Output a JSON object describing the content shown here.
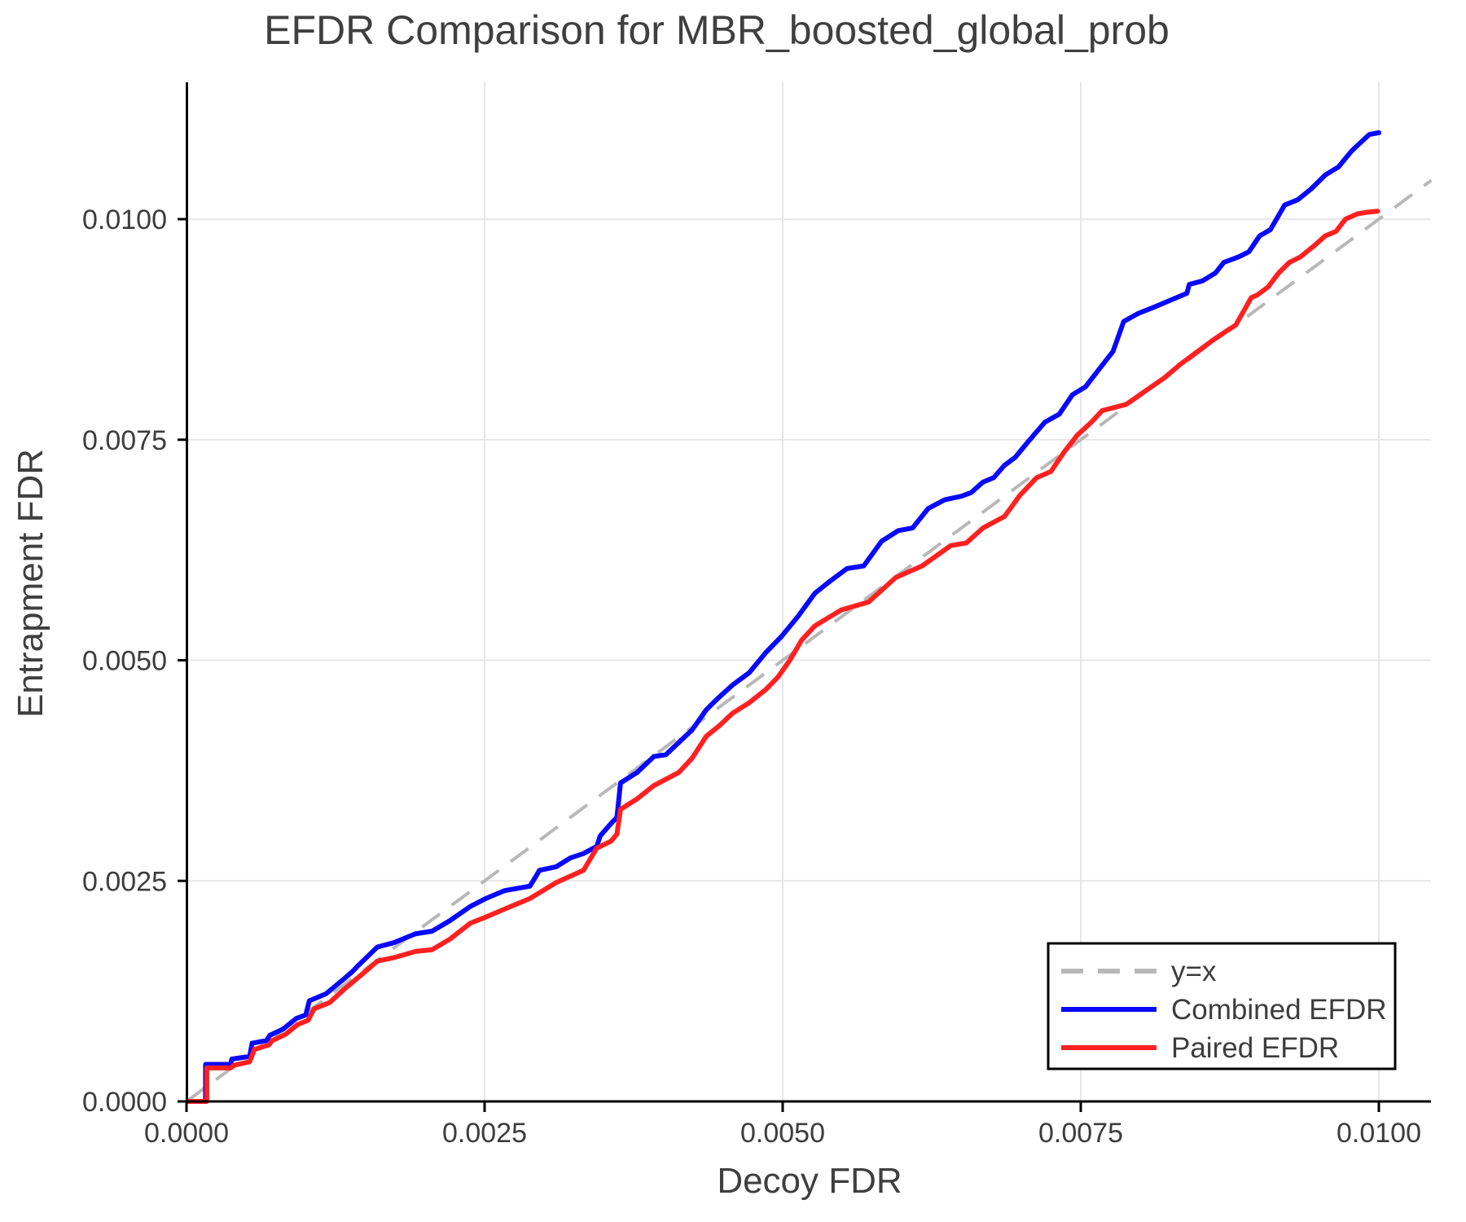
{
  "title": "EFDR Comparison for MBR_boosted_global_prob",
  "axes": {
    "xlabel": "Decoy FDR",
    "ylabel": "Entrapment FDR",
    "xtick_labels": [
      "0.0000",
      "0.0025",
      "0.0050",
      "0.0075",
      "0.0100"
    ],
    "ytick_labels": [
      "0.0000",
      "0.0025",
      "0.0050",
      "0.0075",
      "0.0100"
    ]
  },
  "legend": {
    "entries": [
      {
        "label": "y=x",
        "color": "#b8b8b8",
        "dash": "27 18"
      },
      {
        "label": "Combined EFDR",
        "color": "#0808ff",
        "dash": ""
      },
      {
        "label": "Paired EFDR",
        "color": "#ff2020",
        "dash": ""
      }
    ]
  },
  "colors": {
    "combined": "#0808ff",
    "paired": "#ff2020",
    "reference": "#b8b8b8",
    "grid": "#e4e4e4",
    "text": "#3d3d3d",
    "spine": "#000000"
  },
  "chart_data": {
    "type": "line",
    "title": "EFDR Comparison for MBR_boosted_global_prob",
    "xlabel": "Decoy FDR",
    "ylabel": "Entrapment FDR",
    "xlim": [
      0,
      0.01044
    ],
    "ylim": [
      0,
      0.01155
    ],
    "xticks": [
      0,
      0.0025,
      0.005,
      0.0075,
      0.01
    ],
    "yticks": [
      0,
      0.0025,
      0.005,
      0.0075,
      0.01
    ],
    "grid": true,
    "legend_position": "lower right",
    "reference_line": {
      "name": "y=x",
      "style": "dashed",
      "color": "#b8b8b8",
      "points": [
        [
          0,
          0
        ],
        [
          0.01044,
          0.01044
        ]
      ]
    },
    "series": [
      {
        "name": "Combined EFDR",
        "color": "#0808ff",
        "points": [
          [
            2e-05,
            0.0
          ],
          [
            0.00016,
            0.0
          ],
          [
            0.00016,
            0.00042
          ],
          [
            0.00037,
            0.00042
          ],
          [
            0.00038,
            0.00048
          ],
          [
            0.00053,
            0.00051
          ],
          [
            0.00055,
            0.00066
          ],
          [
            0.00067,
            0.00069
          ],
          [
            0.0007,
            0.00075
          ],
          [
            0.00081,
            0.00082
          ],
          [
            0.00092,
            0.00094
          ],
          [
            0.001,
            0.00098
          ],
          [
            0.00103,
            0.00114
          ],
          [
            0.00117,
            0.00122
          ],
          [
            0.00133,
            0.0014
          ],
          [
            0.00139,
            0.00147
          ],
          [
            0.00144,
            0.00154
          ],
          [
            0.0016,
            0.00175
          ],
          [
            0.00174,
            0.0018
          ],
          [
            0.00192,
            0.0019
          ],
          [
            0.00206,
            0.00193
          ],
          [
            0.00221,
            0.00205
          ],
          [
            0.00238,
            0.00221
          ],
          [
            0.00251,
            0.0023
          ],
          [
            0.00267,
            0.00239
          ],
          [
            0.00288,
            0.00244
          ],
          [
            0.00293,
            0.00255
          ],
          [
            0.00296,
            0.00262
          ],
          [
            0.0031,
            0.00266
          ],
          [
            0.00322,
            0.00276
          ],
          [
            0.00333,
            0.00281
          ],
          [
            0.00344,
            0.00289
          ],
          [
            0.00347,
            0.00301
          ],
          [
            0.00356,
            0.00315
          ],
          [
            0.00361,
            0.00322
          ],
          [
            0.00364,
            0.00361
          ],
          [
            0.00378,
            0.00373
          ],
          [
            0.00392,
            0.00391
          ],
          [
            0.00402,
            0.00393
          ],
          [
            0.00413,
            0.00407
          ],
          [
            0.00424,
            0.00421
          ],
          [
            0.00436,
            0.00444
          ],
          [
            0.00445,
            0.00456
          ],
          [
            0.00458,
            0.00472
          ],
          [
            0.00472,
            0.00486
          ],
          [
            0.00486,
            0.00509
          ],
          [
            0.00499,
            0.00527
          ],
          [
            0.00513,
            0.0055
          ],
          [
            0.00527,
            0.00576
          ],
          [
            0.0054,
            0.0059
          ],
          [
            0.00554,
            0.00604
          ],
          [
            0.00568,
            0.00607
          ],
          [
            0.00583,
            0.00635
          ],
          [
            0.00597,
            0.00647
          ],
          [
            0.00609,
            0.0065
          ],
          [
            0.00622,
            0.00672
          ],
          [
            0.00636,
            0.00682
          ],
          [
            0.0065,
            0.00686
          ],
          [
            0.00658,
            0.0069
          ],
          [
            0.00668,
            0.00702
          ],
          [
            0.00677,
            0.00707
          ],
          [
            0.00686,
            0.00721
          ],
          [
            0.00695,
            0.0073
          ],
          [
            0.00706,
            0.00748
          ],
          [
            0.0072,
            0.0077
          ],
          [
            0.00732,
            0.00779
          ],
          [
            0.00743,
            0.00801
          ],
          [
            0.00754,
            0.0081
          ],
          [
            0.00766,
            0.00831
          ],
          [
            0.00777,
            0.0085
          ],
          [
            0.00786,
            0.00884
          ],
          [
            0.00798,
            0.00893
          ],
          [
            0.00811,
            0.009
          ],
          [
            0.00825,
            0.00908
          ],
          [
            0.00839,
            0.00916
          ],
          [
            0.00841,
            0.00926
          ],
          [
            0.00852,
            0.0093
          ],
          [
            0.00863,
            0.00939
          ],
          [
            0.0087,
            0.00951
          ],
          [
            0.00882,
            0.00957
          ],
          [
            0.00891,
            0.00963
          ],
          [
            0.009,
            0.00981
          ],
          [
            0.00909,
            0.00988
          ],
          [
            0.00921,
            0.01016
          ],
          [
            0.00932,
            0.01022
          ],
          [
            0.00943,
            0.01034
          ],
          [
            0.00955,
            0.0105
          ],
          [
            0.00966,
            0.01059
          ],
          [
            0.00977,
            0.01077
          ],
          [
            0.00984,
            0.01086
          ],
          [
            0.00992,
            0.01096
          ],
          [
            0.01,
            0.01098
          ]
        ]
      },
      {
        "name": "Paired EFDR",
        "color": "#ff2020",
        "points": [
          [
            2e-05,
            0.0
          ],
          [
            0.00017,
            0.0
          ],
          [
            0.00017,
            0.00038
          ],
          [
            0.00037,
            0.00038
          ],
          [
            0.0004,
            0.00041
          ],
          [
            0.00053,
            0.00045
          ],
          [
            0.00057,
            0.00059
          ],
          [
            0.00069,
            0.00064
          ],
          [
            0.00072,
            0.00069
          ],
          [
            0.00083,
            0.00076
          ],
          [
            0.00093,
            0.00087
          ],
          [
            0.00102,
            0.00092
          ],
          [
            0.00107,
            0.00105
          ],
          [
            0.0012,
            0.00112
          ],
          [
            0.00133,
            0.00128
          ],
          [
            0.00148,
            0.00145
          ],
          [
            0.0016,
            0.00159
          ],
          [
            0.00174,
            0.00163
          ],
          [
            0.00192,
            0.0017
          ],
          [
            0.00206,
            0.00172
          ],
          [
            0.00221,
            0.00184
          ],
          [
            0.00238,
            0.00202
          ],
          [
            0.00251,
            0.00209
          ],
          [
            0.00265,
            0.00217
          ],
          [
            0.00288,
            0.0023
          ],
          [
            0.0031,
            0.00248
          ],
          [
            0.00333,
            0.00262
          ],
          [
            0.00344,
            0.00287
          ],
          [
            0.00356,
            0.00295
          ],
          [
            0.00361,
            0.00303
          ],
          [
            0.00364,
            0.00331
          ],
          [
            0.00378,
            0.00343
          ],
          [
            0.00392,
            0.00358
          ],
          [
            0.00413,
            0.00373
          ],
          [
            0.00424,
            0.00389
          ],
          [
            0.00436,
            0.00414
          ],
          [
            0.00447,
            0.00426
          ],
          [
            0.00458,
            0.0044
          ],
          [
            0.00472,
            0.00452
          ],
          [
            0.00486,
            0.00467
          ],
          [
            0.00496,
            0.00481
          ],
          [
            0.00506,
            0.005
          ],
          [
            0.00516,
            0.00523
          ],
          [
            0.00527,
            0.00539
          ],
          [
            0.00549,
            0.00557
          ],
          [
            0.00572,
            0.00566
          ],
          [
            0.00595,
            0.00594
          ],
          [
            0.00617,
            0.00607
          ],
          [
            0.00641,
            0.0063
          ],
          [
            0.00654,
            0.00633
          ],
          [
            0.00668,
            0.0065
          ],
          [
            0.00686,
            0.00663
          ],
          [
            0.00699,
            0.00687
          ],
          [
            0.00713,
            0.00707
          ],
          [
            0.00725,
            0.00714
          ],
          [
            0.00736,
            0.00736
          ],
          [
            0.00747,
            0.00755
          ],
          [
            0.00759,
            0.0077
          ],
          [
            0.00768,
            0.00783
          ],
          [
            0.00788,
            0.0079
          ],
          [
            0.00805,
            0.00806
          ],
          [
            0.0082,
            0.0082
          ],
          [
            0.00834,
            0.00836
          ],
          [
            0.00848,
            0.0085
          ],
          [
            0.00861,
            0.00863
          ],
          [
            0.00872,
            0.00873
          ],
          [
            0.0088,
            0.0088
          ],
          [
            0.00893,
            0.00911
          ],
          [
            0.00898,
            0.00914
          ],
          [
            0.00907,
            0.00923
          ],
          [
            0.00916,
            0.00939
          ],
          [
            0.00925,
            0.00951
          ],
          [
            0.00934,
            0.00957
          ],
          [
            0.00945,
            0.00969
          ],
          [
            0.00955,
            0.00981
          ],
          [
            0.00964,
            0.00986
          ],
          [
            0.00972,
            0.01
          ],
          [
            0.00982,
            0.01006
          ],
          [
            0.00991,
            0.01008
          ],
          [
            0.00999,
            0.01009
          ]
        ]
      }
    ]
  }
}
